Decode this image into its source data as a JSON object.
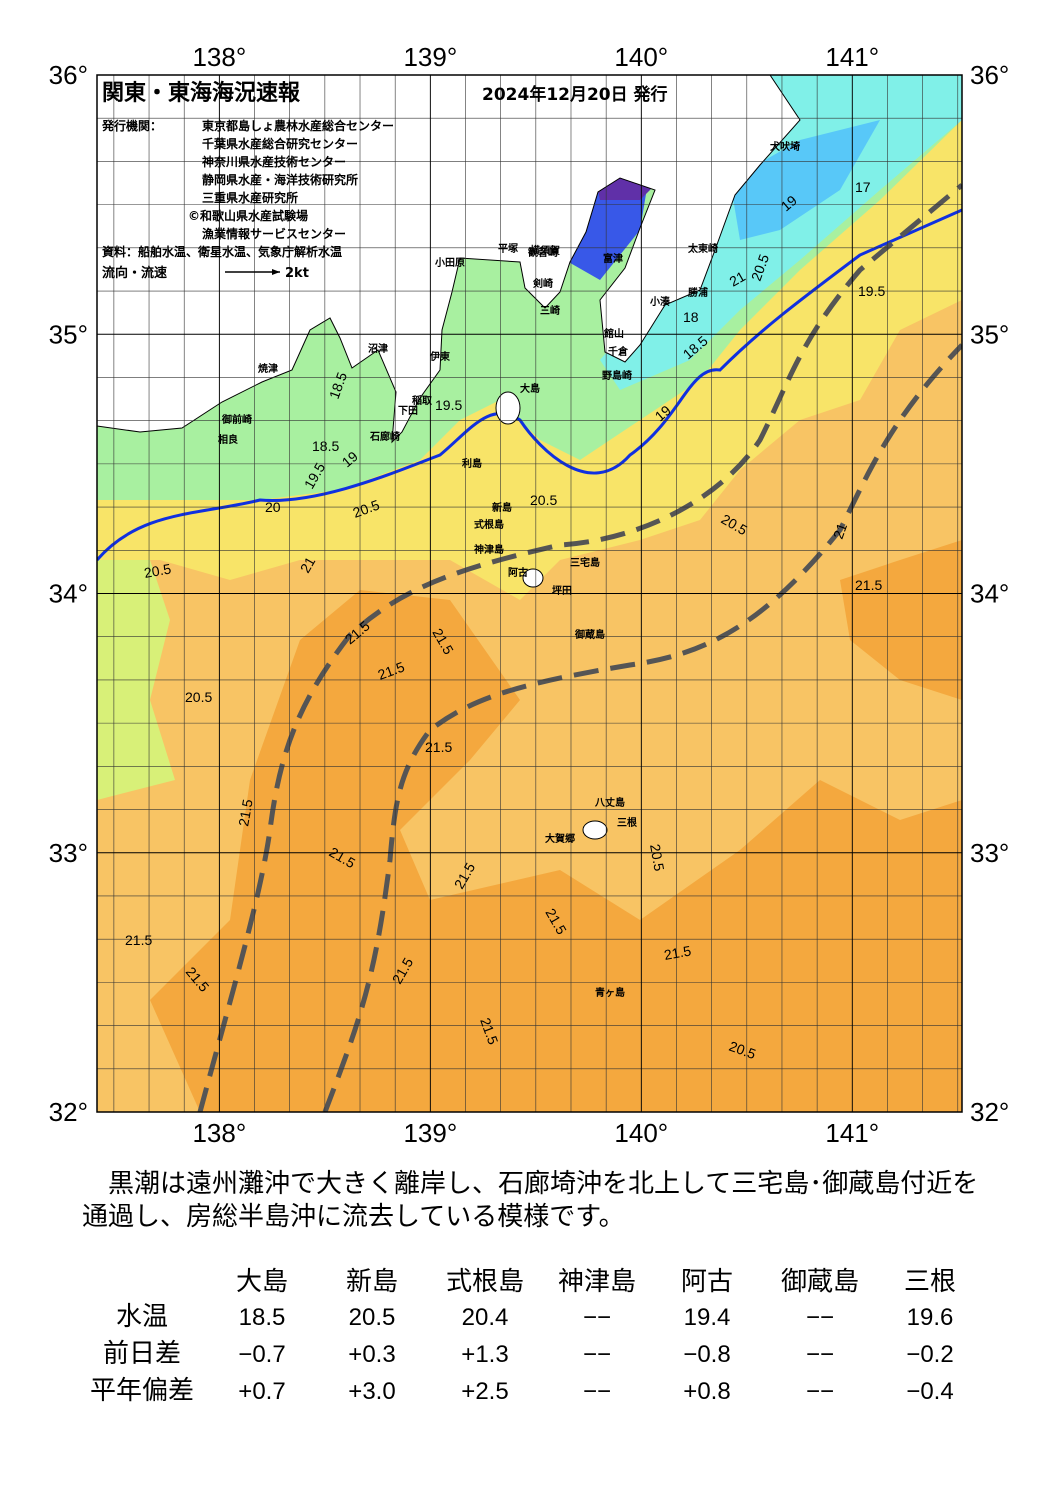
{
  "map": {
    "title": "関東・東海海況速報",
    "date": "2024年12月20日 発行",
    "issuer_label": "発行機関：",
    "issuers": [
      "東京都島しょ農林水産総合センター",
      "千葉県水産総合研究センター",
      "神奈川県水産技術センター",
      "静岡県水産・海洋技術研究所",
      "三重県水産研究所",
      "©和歌山県水産試験場",
      "漁業情報サービスセンター"
    ],
    "source": "資料：船舶水温、衛星水温、気象庁解析水温",
    "flow_label": "流向・流速",
    "flow_scale": "2kt",
    "xlim": [
      137.42,
      141.52
    ],
    "ylim": [
      32,
      36
    ],
    "xticks": [
      {
        "value": 138,
        "label": "138°"
      },
      {
        "value": 139,
        "label": "139°"
      },
      {
        "value": 140,
        "label": "140°"
      },
      {
        "value": 141,
        "label": "141°"
      }
    ],
    "yticks": [
      {
        "value": 32,
        "label": "32°"
      },
      {
        "value": 33,
        "label": "33°"
      },
      {
        "value": 34,
        "label": "34°"
      },
      {
        "value": 35,
        "label": "35°"
      },
      {
        "value": 36,
        "label": "36°"
      }
    ],
    "places": [
      "犬吠埼",
      "太東崎",
      "小湊",
      "勝浦",
      "千倉",
      "野島崎",
      "館山",
      "富津",
      "横須賀",
      "観音崎",
      "剣崎",
      "三崎",
      "平塚",
      "小田原",
      "沼津",
      "伊東",
      "焼津",
      "御前崎",
      "相良",
      "下田",
      "石廊崎",
      "稲取",
      "大島",
      "利島",
      "新島",
      "式根島",
      "神津島",
      "三宅島",
      "阿古",
      "坪田",
      "御蔵島",
      "八丈島",
      "三根",
      "大賀郷",
      "青ヶ島"
    ],
    "contour_labels": [
      "19.5",
      "18.5",
      "18.5",
      "19",
      "19.5",
      "20",
      "20.5",
      "20.5",
      "20.5",
      "20.5",
      "21",
      "21.5",
      "21.5",
      "21.5",
      "21.5",
      "21.5",
      "21.5",
      "21.5",
      "21.5",
      "21.5",
      "21.5",
      "21.5",
      "21.5",
      "21.5",
      "21.5",
      "20.5",
      "20.5",
      "20.5",
      "20.5",
      "19.5",
      "19",
      "18.5",
      "18",
      "19",
      "17",
      "21",
      "21"
    ]
  },
  "summary": [
    "　黒潮は遠州灘沖で大きく離岸し、石廊埼沖を北上して三宅島･御蔵島付近を",
    "通過し、房総半島沖に流去している模様です。"
  ],
  "table": {
    "header": [
      "大島",
      "新島",
      "式根島",
      "神津島",
      "阿古",
      "御蔵島",
      "三根"
    ],
    "rows": [
      {
        "label": "水温",
        "cells": [
          "18.5",
          "20.5",
          "20.4",
          "−−",
          "19.4",
          "−−",
          "19.6"
        ]
      },
      {
        "label": "前日差",
        "cells": [
          "−0.7",
          "+0.3",
          "+1.3",
          "−−",
          "−0.8",
          "−−",
          "−0.2"
        ]
      },
      {
        "label": "平年偏差",
        "cells": [
          "+0.7",
          "+3.0",
          "+2.5",
          "−−",
          "+0.8",
          "−−",
          "−0.4"
        ]
      }
    ]
  }
}
